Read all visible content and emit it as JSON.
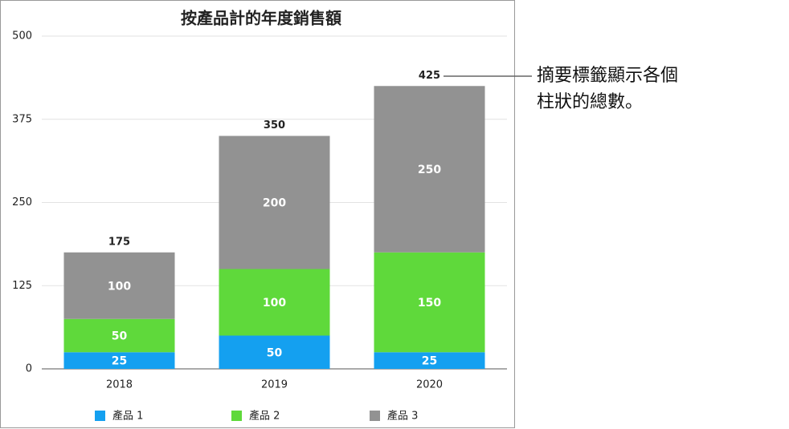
{
  "chart_data": {
    "type": "stacked_bar",
    "title": "按產品計的年度銷售額",
    "categories": [
      "2018",
      "2019",
      "2020"
    ],
    "series": [
      {
        "name": "產品 1",
        "color": "#14a0f0",
        "values": [
          25,
          50,
          25
        ]
      },
      {
        "name": "產品 2",
        "color": "#5fd93b",
        "values": [
          50,
          100,
          150
        ]
      },
      {
        "name": "產品 3",
        "color": "#929292",
        "values": [
          100,
          200,
          250
        ]
      }
    ],
    "totals": [
      175,
      350,
      425
    ],
    "ylim": [
      0,
      500
    ],
    "yticks": [
      0,
      125,
      250,
      375,
      500
    ],
    "grid": true,
    "legend": "bottom",
    "annotation": "摘要標籤顯示各個柱狀的總數。"
  }
}
